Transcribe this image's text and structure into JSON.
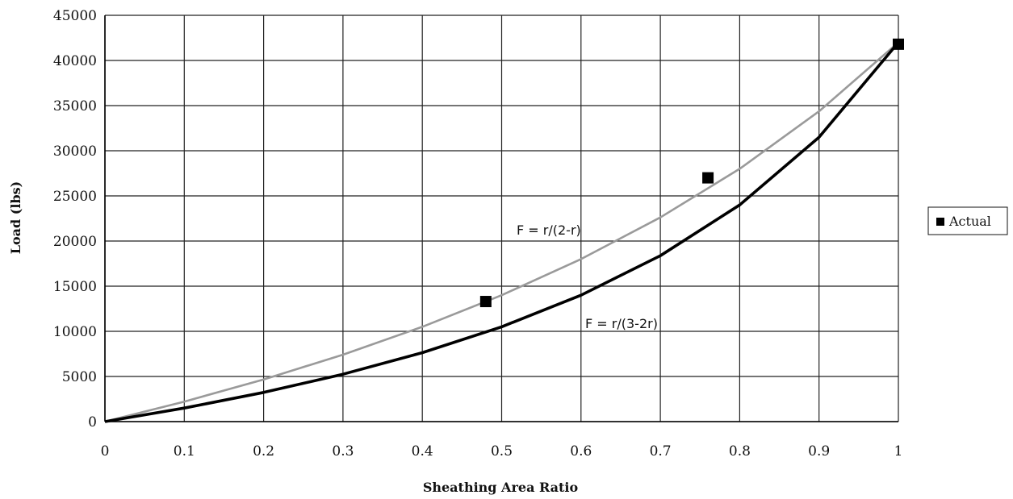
{
  "chart_data": {
    "type": "line",
    "xlabel": "Sheathing Area Ratio",
    "ylabel": "Load (lbs)",
    "xlim": [
      0,
      1
    ],
    "ylim": [
      0,
      45000
    ],
    "x_ticks": [
      "0",
      "0.1",
      "0.2",
      "0.3",
      "0.4",
      "0.5",
      "0.6",
      "0.7",
      "0.8",
      "0.9",
      "1"
    ],
    "x_tick_values": [
      0,
      0.1,
      0.2,
      0.3,
      0.4,
      0.5,
      0.6,
      0.7,
      0.8,
      0.9,
      1
    ],
    "y_ticks": [
      "0",
      "5000",
      "10000",
      "15000",
      "20000",
      "25000",
      "30000",
      "35000",
      "40000",
      "45000"
    ],
    "y_tick_values": [
      0,
      5000,
      10000,
      15000,
      20000,
      25000,
      30000,
      35000,
      40000,
      45000
    ],
    "grid": true,
    "series": [
      {
        "label": "F = r/(2-r)",
        "color": "#9a9a9a",
        "x": [
          0,
          0.1,
          0.2,
          0.3,
          0.4,
          0.5,
          0.6,
          0.7,
          0.8,
          0.9,
          1.0
        ],
        "y": [
          0,
          2211,
          4667,
          7412,
          10500,
          14000,
          18000,
          22615,
          28000,
          34364,
          42000
        ]
      },
      {
        "label": "F = r/(3-2r)",
        "color": "#000000",
        "x": [
          0,
          0.1,
          0.2,
          0.3,
          0.4,
          0.5,
          0.6,
          0.7,
          0.8,
          0.9,
          1.0
        ],
        "y": [
          0,
          1500,
          3231,
          5250,
          7636,
          10500,
          14000,
          18375,
          24000,
          31500,
          42000
        ]
      },
      {
        "name": "Actual",
        "type": "scatter",
        "marker": "square",
        "color": "#000000",
        "x": [
          0.48,
          0.76,
          1.0
        ],
        "y": [
          13300,
          27000,
          41800
        ]
      }
    ],
    "legend": {
      "placement": "right",
      "entries": [
        "Actual"
      ]
    }
  }
}
